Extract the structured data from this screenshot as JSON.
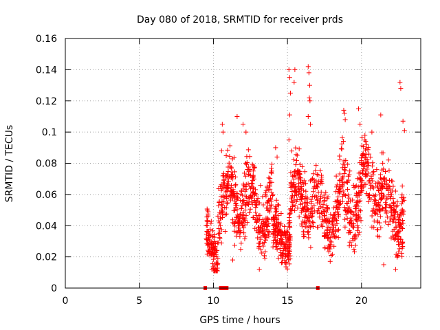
{
  "chart_data": {
    "type": "scatter",
    "title": "Day 080 of 2018, SRMTID for receiver prds",
    "xlabel": "GPS time / hours",
    "ylabel": "SRMTID / TECUs",
    "xlim": [
      0,
      24
    ],
    "ylim": [
      0,
      0.16
    ],
    "xticks": [
      0,
      5,
      10,
      15,
      20
    ],
    "xtick_labels": [
      "0",
      "5",
      "10",
      "15",
      "20"
    ],
    "yticks": [
      0,
      0.02,
      0.04,
      0.06,
      0.08,
      0.1,
      0.12,
      0.14,
      0.16
    ],
    "ytick_labels": [
      "0",
      "0.02",
      "0.04",
      "0.06",
      "0.08",
      "0.1",
      "0.12",
      "0.14",
      "0.16"
    ],
    "grid": true,
    "marker": "+",
    "color": "#ff0000",
    "series": [
      {
        "name": "prds",
        "segments": [
          {
            "start": 9.5,
            "end": 10.3,
            "base": 0.028,
            "amp": 0.009,
            "spread": 0.016,
            "count": 110
          },
          {
            "start": 10.3,
            "end": 11.0,
            "base": 0.055,
            "amp": 0.012,
            "spread": 0.025,
            "count": 80
          },
          {
            "start": 11.0,
            "end": 12.5,
            "base": 0.058,
            "amp": 0.014,
            "spread": 0.026,
            "count": 170
          },
          {
            "start": 12.5,
            "end": 14.0,
            "base": 0.052,
            "amp": 0.012,
            "spread": 0.025,
            "count": 170
          },
          {
            "start": 14.0,
            "end": 15.2,
            "base": 0.035,
            "amp": 0.008,
            "spread": 0.018,
            "count": 170
          },
          {
            "start": 15.2,
            "end": 17.0,
            "base": 0.058,
            "amp": 0.012,
            "spread": 0.025,
            "count": 190
          },
          {
            "start": 17.0,
            "end": 18.5,
            "base": 0.045,
            "amp": 0.012,
            "spread": 0.025,
            "count": 160
          },
          {
            "start": 18.5,
            "end": 20.0,
            "base": 0.058,
            "amp": 0.015,
            "spread": 0.027,
            "count": 170
          },
          {
            "start": 20.0,
            "end": 21.5,
            "base": 0.065,
            "amp": 0.013,
            "spread": 0.026,
            "count": 160
          },
          {
            "start": 21.5,
            "end": 22.9,
            "base": 0.05,
            "amp": 0.014,
            "spread": 0.025,
            "count": 150
          }
        ],
        "outliers": [
          {
            "x": 10.6,
            "y": 0.105
          },
          {
            "x": 10.65,
            "y": 0.1
          },
          {
            "x": 10.55,
            "y": 0.088
          },
          {
            "x": 11.6,
            "y": 0.11
          },
          {
            "x": 12.0,
            "y": 0.105
          },
          {
            "x": 12.2,
            "y": 0.1
          },
          {
            "x": 14.2,
            "y": 0.09
          },
          {
            "x": 14.3,
            "y": 0.084
          },
          {
            "x": 15.1,
            "y": 0.14
          },
          {
            "x": 15.15,
            "y": 0.135
          },
          {
            "x": 15.2,
            "y": 0.125
          },
          {
            "x": 15.15,
            "y": 0.111
          },
          {
            "x": 15.1,
            "y": 0.095
          },
          {
            "x": 15.5,
            "y": 0.14
          },
          {
            "x": 15.45,
            "y": 0.132
          },
          {
            "x": 16.4,
            "y": 0.142
          },
          {
            "x": 16.45,
            "y": 0.138
          },
          {
            "x": 16.5,
            "y": 0.13
          },
          {
            "x": 16.48,
            "y": 0.122
          },
          {
            "x": 16.52,
            "y": 0.12
          },
          {
            "x": 16.4,
            "y": 0.11
          },
          {
            "x": 16.55,
            "y": 0.105
          },
          {
            "x": 18.8,
            "y": 0.114
          },
          {
            "x": 18.85,
            "y": 0.112
          },
          {
            "x": 18.9,
            "y": 0.108
          },
          {
            "x": 19.8,
            "y": 0.115
          },
          {
            "x": 19.9,
            "y": 0.105
          },
          {
            "x": 20.7,
            "y": 0.1
          },
          {
            "x": 21.3,
            "y": 0.111
          },
          {
            "x": 22.6,
            "y": 0.132
          },
          {
            "x": 22.65,
            "y": 0.128
          },
          {
            "x": 22.8,
            "y": 0.107
          },
          {
            "x": 22.9,
            "y": 0.101
          },
          {
            "x": 13.1,
            "y": 0.012
          },
          {
            "x": 21.5,
            "y": 0.015
          },
          {
            "x": 22.3,
            "y": 0.012
          },
          {
            "x": 9.9,
            "y": 0.012
          },
          {
            "x": 11.3,
            "y": 0.018
          }
        ],
        "zero_points": [
          9.45,
          10.5,
          10.7,
          10.8,
          10.9,
          17.05
        ]
      }
    ]
  }
}
